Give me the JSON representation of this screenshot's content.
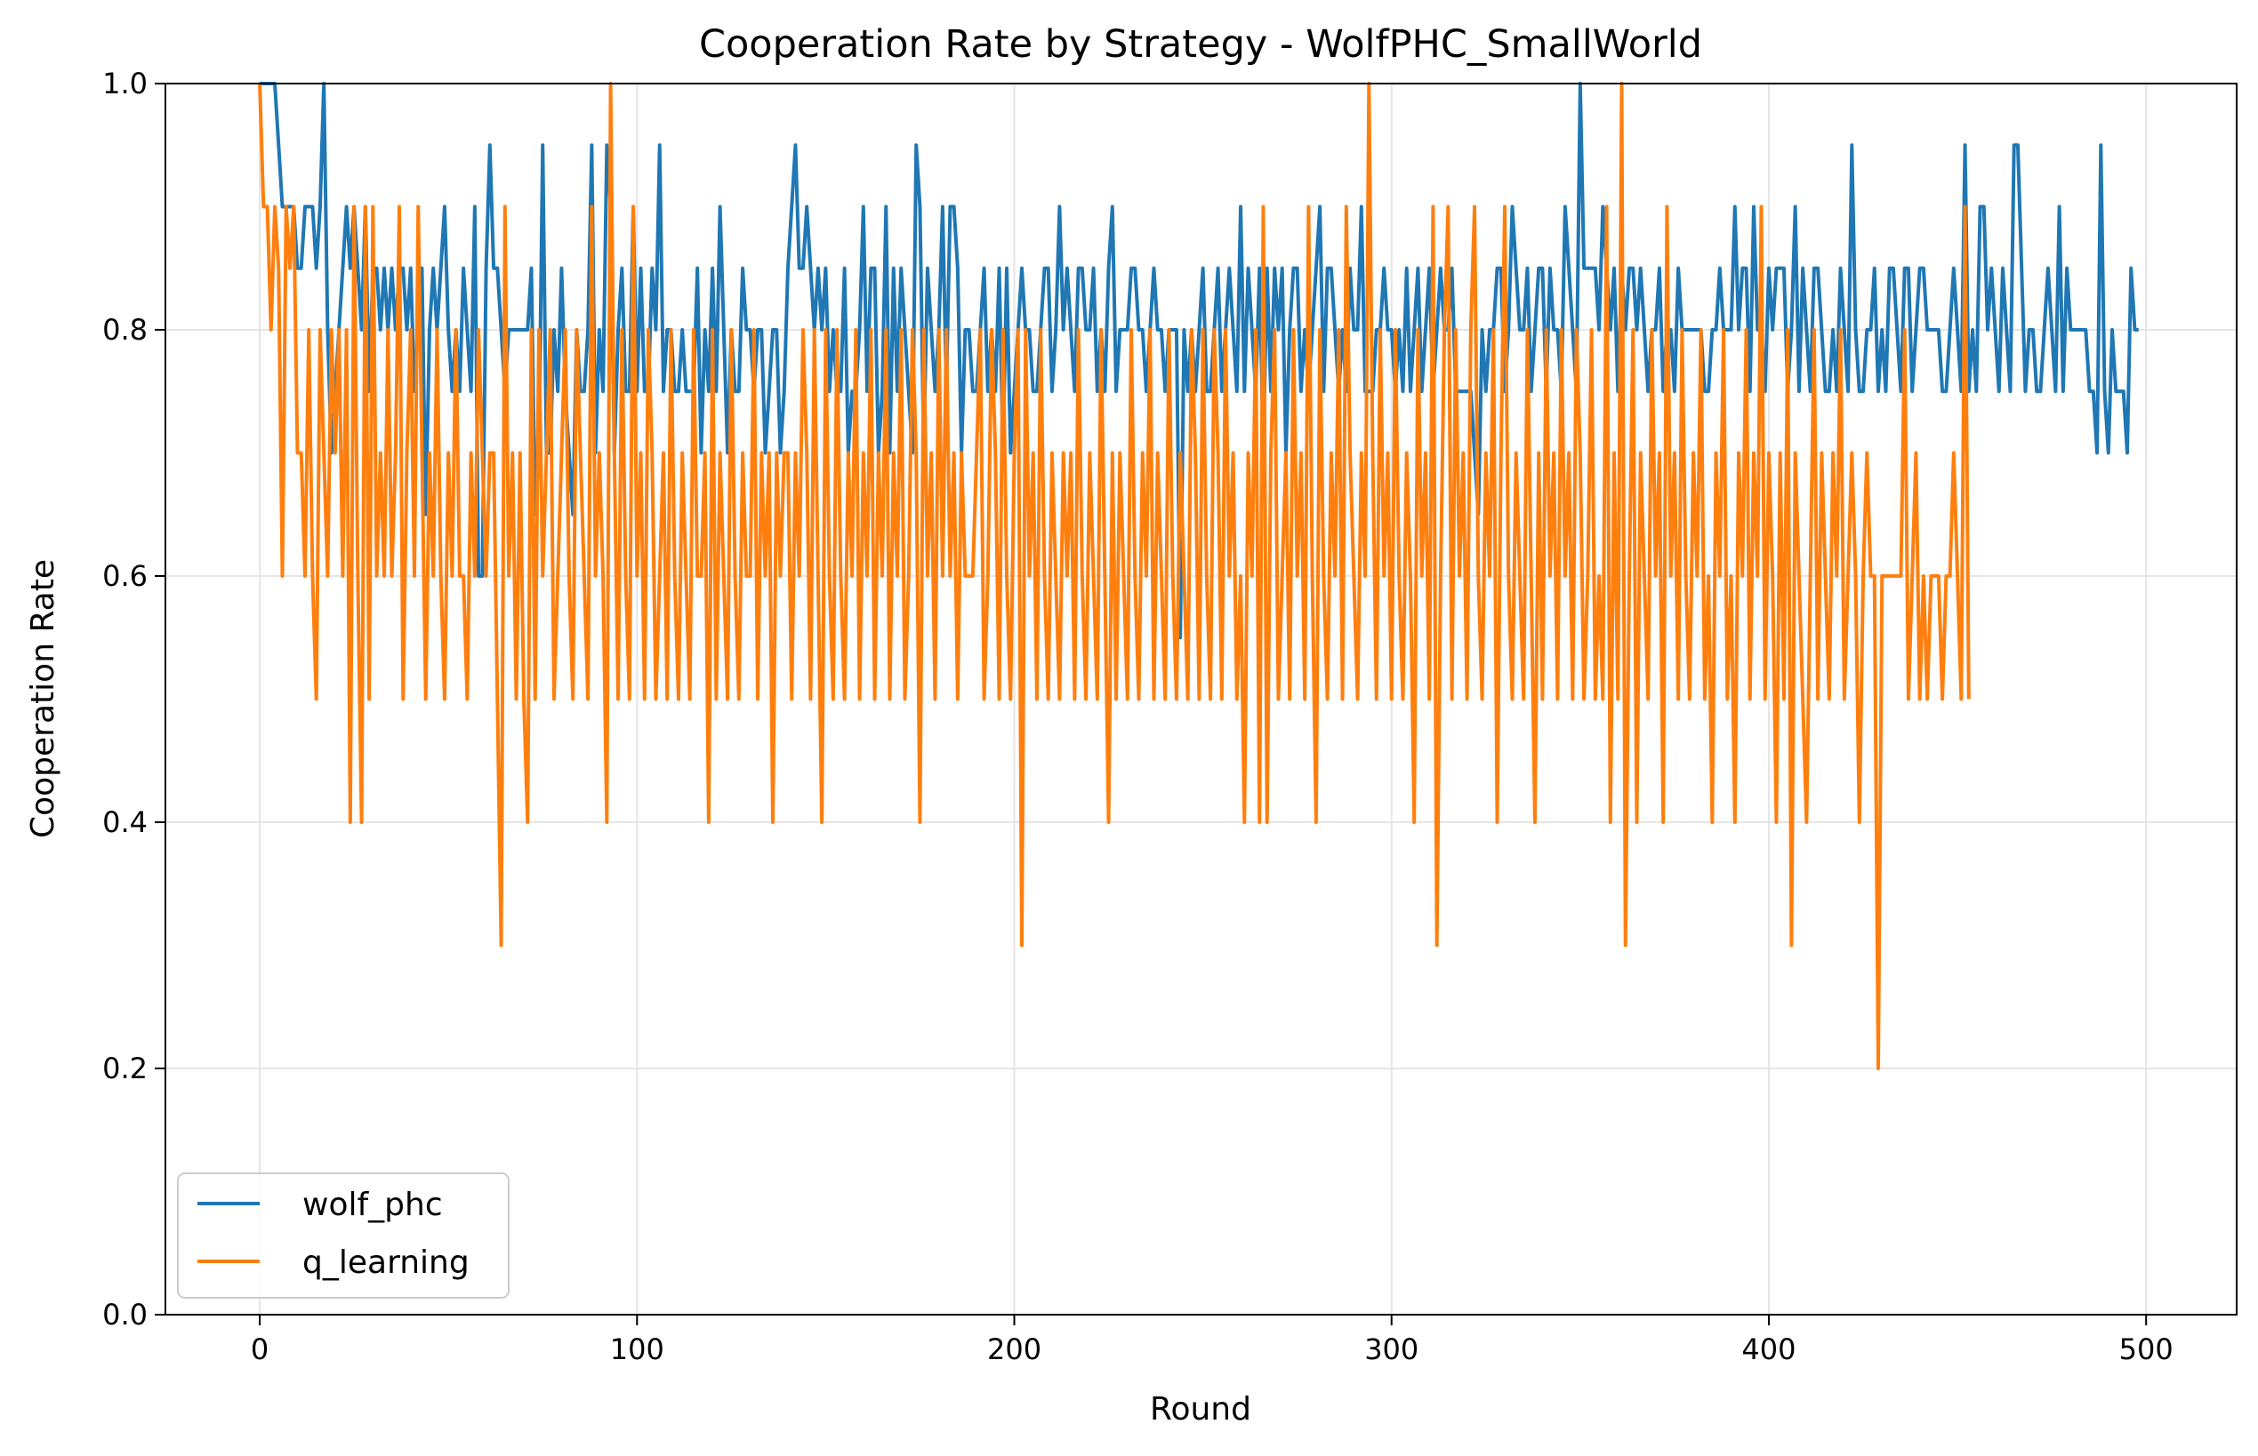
{
  "chart_data": {
    "type": "line",
    "title": "Cooperation Rate by Strategy - WolfPHC_SmallWorld",
    "xlabel": "Round",
    "ylabel": "Cooperation Rate",
    "xlim": [
      -25,
      524
    ],
    "ylim": [
      0.0,
      1.0
    ],
    "xticks": [
      0,
      100,
      200,
      300,
      400,
      500
    ],
    "yticks": [
      0.0,
      0.2,
      0.4,
      0.6,
      0.8,
      1.0
    ],
    "xtick_labels": [
      "0",
      "100",
      "200",
      "300",
      "400",
      "500"
    ],
    "ytick_labels": [
      "0.0",
      "0.2",
      "0.4",
      "0.6",
      "0.8",
      "1.0"
    ],
    "grid": true,
    "legend_position": "lower-left",
    "series": [
      {
        "name": "wolf_phc",
        "color": "#1f77b4",
        "x_start": 0,
        "x_step": 1,
        "values": [
          1.0,
          1.0,
          1.0,
          1.0,
          1.0,
          0.95,
          0.9,
          0.9,
          0.9,
          0.9,
          0.85,
          0.85,
          0.9,
          0.9,
          0.9,
          0.85,
          0.9,
          1.0,
          0.8,
          0.7,
          0.75,
          0.8,
          0.85,
          0.9,
          0.85,
          0.9,
          0.85,
          0.8,
          0.9,
          0.75,
          0.85,
          0.85,
          0.8,
          0.85,
          0.8,
          0.85,
          0.8,
          0.85,
          0.85,
          0.8,
          0.85,
          0.75,
          0.8,
          0.85,
          0.65,
          0.8,
          0.85,
          0.8,
          0.85,
          0.9,
          0.8,
          0.75,
          0.8,
          0.75,
          0.85,
          0.8,
          0.75,
          0.9,
          0.6,
          0.6,
          0.85,
          0.95,
          0.85,
          0.85,
          0.8,
          0.75,
          0.8,
          0.8,
          0.8,
          0.8,
          0.8,
          0.8,
          0.85,
          0.65,
          0.7,
          0.95,
          0.7,
          0.7,
          0.8,
          0.75,
          0.85,
          0.75,
          0.7,
          0.65,
          0.8,
          0.75,
          0.75,
          0.8,
          0.95,
          0.7,
          0.8,
          0.75,
          0.95,
          0.9,
          0.7,
          0.8,
          0.85,
          0.75,
          0.75,
          0.9,
          0.75,
          0.85,
          0.75,
          0.75,
          0.85,
          0.8,
          0.95,
          0.75,
          0.8,
          0.8,
          0.75,
          0.75,
          0.8,
          0.75,
          0.75,
          0.75,
          0.85,
          0.7,
          0.8,
          0.75,
          0.85,
          0.75,
          0.9,
          0.8,
          0.7,
          0.8,
          0.75,
          0.75,
          0.85,
          0.8,
          0.8,
          0.75,
          0.8,
          0.8,
          0.7,
          0.75,
          0.8,
          0.8,
          0.7,
          0.75,
          0.85,
          0.9,
          0.95,
          0.85,
          0.85,
          0.9,
          0.85,
          0.8,
          0.85,
          0.8,
          0.85,
          0.75,
          0.8,
          0.75,
          0.75,
          0.85,
          0.7,
          0.75,
          0.75,
          0.8,
          0.9,
          0.75,
          0.85,
          0.85,
          0.7,
          0.75,
          0.9,
          0.7,
          0.85,
          0.75,
          0.85,
          0.8,
          0.75,
          0.7,
          0.95,
          0.9,
          0.7,
          0.85,
          0.8,
          0.75,
          0.8,
          0.9,
          0.75,
          0.9,
          0.9,
          0.85,
          0.7,
          0.8,
          0.8,
          0.75,
          0.75,
          0.8,
          0.85,
          0.75,
          0.8,
          0.75,
          0.85,
          0.7,
          0.85,
          0.7,
          0.75,
          0.8,
          0.85,
          0.8,
          0.8,
          0.75,
          0.75,
          0.8,
          0.85,
          0.85,
          0.75,
          0.8,
          0.9,
          0.8,
          0.85,
          0.8,
          0.75,
          0.85,
          0.85,
          0.8,
          0.8,
          0.85,
          0.75,
          0.8,
          0.75,
          0.85,
          0.9,
          0.75,
          0.8,
          0.8,
          0.8,
          0.85,
          0.85,
          0.8,
          0.8,
          0.75,
          0.8,
          0.85,
          0.8,
          0.8,
          0.75,
          0.8,
          0.8,
          0.8,
          0.55,
          0.8,
          0.75,
          0.8,
          0.75,
          0.8,
          0.85,
          0.75,
          0.75,
          0.8,
          0.85,
          0.75,
          0.8,
          0.85,
          0.8,
          0.75,
          0.9,
          0.75,
          0.85,
          0.8,
          0.75,
          0.85,
          0.7,
          0.85,
          0.75,
          0.85,
          0.8,
          0.85,
          0.7,
          0.8,
          0.85,
          0.85,
          0.75,
          0.8,
          0.75,
          0.8,
          0.85,
          0.9,
          0.75,
          0.85,
          0.85,
          0.8,
          0.75,
          0.8,
          0.75,
          0.85,
          0.8,
          0.8,
          0.9,
          0.75,
          0.75,
          0.75,
          0.8,
          0.8,
          0.85,
          0.8,
          0.8,
          0.75,
          0.8,
          0.75,
          0.85,
          0.75,
          0.8,
          0.85,
          0.75,
          0.8,
          0.85,
          0.75,
          0.8,
          0.85,
          0.8,
          0.8,
          0.85,
          0.75,
          0.75,
          0.75,
          0.75,
          0.75,
          0.7,
          0.65,
          0.8,
          0.75,
          0.8,
          0.8,
          0.85,
          0.85,
          0.75,
          0.8,
          0.9,
          0.85,
          0.8,
          0.8,
          0.85,
          0.75,
          0.8,
          0.85,
          0.85,
          0.75,
          0.85,
          0.8,
          0.8,
          0.75,
          0.9,
          0.85,
          0.8,
          0.75,
          1.0,
          0.85,
          0.85,
          0.85,
          0.85,
          0.8,
          0.9,
          0.85,
          0.8,
          0.85,
          0.75,
          0.85,
          0.8,
          0.85,
          0.85,
          0.8,
          0.85,
          0.8,
          0.75,
          0.8,
          0.8,
          0.85,
          0.75,
          0.8,
          0.8,
          0.75,
          0.85,
          0.8,
          0.8,
          0.8,
          0.8,
          0.8,
          0.8,
          0.75,
          0.75,
          0.8,
          0.8,
          0.85,
          0.8,
          0.8,
          0.8,
          0.9,
          0.8,
          0.85,
          0.85,
          0.75,
          0.9,
          0.8,
          0.8,
          0.75,
          0.85,
          0.8,
          0.85,
          0.85,
          0.85,
          0.75,
          0.8,
          0.9,
          0.75,
          0.85,
          0.8,
          0.75,
          0.85,
          0.85,
          0.8,
          0.75,
          0.75,
          0.8,
          0.75,
          0.85,
          0.8,
          0.75,
          0.95,
          0.8,
          0.75,
          0.75,
          0.8,
          0.8,
          0.85,
          0.75,
          0.8,
          0.75,
          0.85,
          0.85,
          0.8,
          0.75,
          0.85,
          0.85,
          0.75,
          0.8,
          0.85,
          0.85,
          0.8,
          0.8,
          0.8,
          0.8,
          0.75,
          0.75,
          0.8,
          0.85,
          0.8,
          0.75,
          0.95,
          0.75,
          0.8,
          0.75,
          0.9,
          0.9,
          0.8,
          0.85,
          0.8,
          0.75,
          0.85,
          0.8,
          0.75,
          0.95,
          0.95,
          0.85,
          0.75,
          0.8,
          0.8,
          0.75,
          0.75,
          0.8,
          0.85,
          0.8,
          0.75,
          0.9,
          0.75,
          0.85,
          0.8,
          0.8,
          0.8,
          0.8,
          0.8,
          0.75,
          0.75,
          0.7,
          0.95,
          0.75,
          0.7,
          0.8,
          0.75,
          0.75,
          0.75,
          0.7,
          0.85,
          0.8,
          0.8
        ]
      },
      {
        "name": "q_learning",
        "color": "#ff7f0e",
        "x_start": 0,
        "x_step": 1,
        "values": [
          1.0,
          0.9,
          0.9,
          0.8,
          0.9,
          0.85,
          0.6,
          0.9,
          0.85,
          0.9,
          0.7,
          0.7,
          0.6,
          0.8,
          0.6,
          0.5,
          0.8,
          0.7,
          0.6,
          0.8,
          0.7,
          0.8,
          0.6,
          0.8,
          0.4,
          0.9,
          0.6,
          0.4,
          0.9,
          0.5,
          0.9,
          0.6,
          0.7,
          0.6,
          0.8,
          0.6,
          0.7,
          0.9,
          0.5,
          0.7,
          0.8,
          0.6,
          0.9,
          0.7,
          0.5,
          0.7,
          0.6,
          0.8,
          0.6,
          0.5,
          0.7,
          0.6,
          0.8,
          0.6,
          0.6,
          0.5,
          0.7,
          0.6,
          0.8,
          0.7,
          0.6,
          0.7,
          0.7,
          0.5,
          0.3,
          0.9,
          0.6,
          0.7,
          0.5,
          0.7,
          0.5,
          0.4,
          0.8,
          0.5,
          0.8,
          0.6,
          0.7,
          0.8,
          0.5,
          0.6,
          0.7,
          0.8,
          0.6,
          0.5,
          0.8,
          0.7,
          0.6,
          0.5,
          0.9,
          0.6,
          0.7,
          0.6,
          0.4,
          1.0,
          0.7,
          0.5,
          0.8,
          0.6,
          0.5,
          0.9,
          0.6,
          0.7,
          0.5,
          0.8,
          0.7,
          0.5,
          0.6,
          0.7,
          0.5,
          0.8,
          0.6,
          0.5,
          0.7,
          0.6,
          0.5,
          0.8,
          0.6,
          0.6,
          0.7,
          0.4,
          0.8,
          0.5,
          0.7,
          0.6,
          0.5,
          0.8,
          0.6,
          0.5,
          0.7,
          0.6,
          0.6,
          0.8,
          0.5,
          0.7,
          0.6,
          0.7,
          0.4,
          0.7,
          0.6,
          0.7,
          0.7,
          0.5,
          0.7,
          0.6,
          0.8,
          0.7,
          0.5,
          0.8,
          0.6,
          0.4,
          0.8,
          0.6,
          0.5,
          0.8,
          0.6,
          0.5,
          0.7,
          0.6,
          0.8,
          0.5,
          0.7,
          0.6,
          0.8,
          0.5,
          0.7,
          0.6,
          0.8,
          0.5,
          0.7,
          0.6,
          0.8,
          0.5,
          0.6,
          0.8,
          0.7,
          0.4,
          0.8,
          0.6,
          0.7,
          0.5,
          0.8,
          0.6,
          0.8,
          0.6,
          0.7,
          0.5,
          0.7,
          0.6,
          0.6,
          0.6,
          0.7,
          0.8,
          0.5,
          0.6,
          0.8,
          0.7,
          0.5,
          0.8,
          0.6,
          0.5,
          0.7,
          0.8,
          0.3,
          0.8,
          0.6,
          0.7,
          0.5,
          0.8,
          0.6,
          0.5,
          0.7,
          0.6,
          0.5,
          0.7,
          0.6,
          0.7,
          0.5,
          0.8,
          0.6,
          0.5,
          0.7,
          0.6,
          0.5,
          0.8,
          0.6,
          0.4,
          0.7,
          0.5,
          0.7,
          0.6,
          0.5,
          0.8,
          0.6,
          0.5,
          0.7,
          0.6,
          0.8,
          0.5,
          0.7,
          0.6,
          0.5,
          0.8,
          0.6,
          0.5,
          0.7,
          0.6,
          0.5,
          0.8,
          0.7,
          0.5,
          0.8,
          0.6,
          0.5,
          0.8,
          0.7,
          0.5,
          0.8,
          0.6,
          0.7,
          0.5,
          0.6,
          0.4,
          0.7,
          0.6,
          0.8,
          0.4,
          0.9,
          0.4,
          0.7,
          0.8,
          0.5,
          0.6,
          0.7,
          0.5,
          0.8,
          0.6,
          0.7,
          0.5,
          0.9,
          0.6,
          0.4,
          0.8,
          0.6,
          0.5,
          0.7,
          0.6,
          0.8,
          0.5,
          0.9,
          0.7,
          0.6,
          0.5,
          0.7,
          0.6,
          1.0,
          0.7,
          0.5,
          0.8,
          0.6,
          0.7,
          0.5,
          0.8,
          0.6,
          0.5,
          0.7,
          0.6,
          0.4,
          0.8,
          0.6,
          0.7,
          0.5,
          0.9,
          0.3,
          0.6,
          0.8,
          0.9,
          0.5,
          0.8,
          0.6,
          0.7,
          0.5,
          0.8,
          0.9,
          0.6,
          0.5,
          0.7,
          0.6,
          0.8,
          0.4,
          0.7,
          0.9,
          0.6,
          0.5,
          0.7,
          0.6,
          0.5,
          0.8,
          0.6,
          0.4,
          0.7,
          0.5,
          0.8,
          0.6,
          0.7,
          0.5,
          0.8,
          0.6,
          0.7,
          0.5,
          0.8,
          0.7,
          0.5,
          0.6,
          0.8,
          0.5,
          0.6,
          0.5,
          0.9,
          0.4,
          0.7,
          0.5,
          1.0,
          0.3,
          0.6,
          0.8,
          0.4,
          0.7,
          0.6,
          0.5,
          0.8,
          0.6,
          0.7,
          0.4,
          0.9,
          0.6,
          0.7,
          0.5,
          0.8,
          0.6,
          0.5,
          0.7,
          0.6,
          0.8,
          0.5,
          0.6,
          0.4,
          0.7,
          0.6,
          0.8,
          0.5,
          0.6,
          0.4,
          0.7,
          0.6,
          0.8,
          0.5,
          0.7,
          0.6,
          0.9,
          0.5,
          0.7,
          0.6,
          0.4,
          0.7,
          0.5,
          0.8,
          0.3,
          0.7,
          0.6,
          0.5,
          0.4,
          0.6,
          0.8,
          0.5,
          0.7,
          0.6,
          0.5,
          0.7,
          0.6,
          0.8,
          0.5,
          0.6,
          0.7,
          0.6,
          0.4,
          0.6,
          0.7,
          0.6,
          0.6,
          0.2,
          0.6,
          0.6,
          0.6,
          0.6,
          0.6,
          0.6,
          0.8,
          0.5,
          0.6,
          0.7,
          0.5,
          0.6,
          0.5,
          0.6,
          0.6,
          0.6,
          0.5,
          0.6,
          0.6,
          0.7,
          0.6,
          0.5,
          0.9,
          0.5
        ]
      }
    ]
  }
}
